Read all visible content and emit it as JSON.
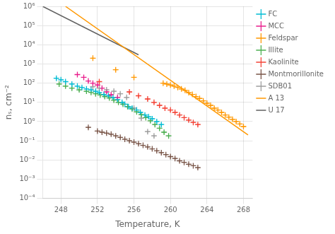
{
  "chart_data": {
    "type": "scatter",
    "xlabel": "Temperature, K",
    "ylabel": "nₛ, cm⁻²",
    "log": "y",
    "xlim": [
      246,
      269
    ],
    "ylim": [
      0.0001,
      1000000
    ],
    "xticks": [
      248,
      252,
      256,
      260,
      264,
      268
    ],
    "yticks": [
      {
        "value": 0.0001,
        "label": "10⁻⁴"
      },
      {
        "value": 0.001,
        "label": "10⁻³"
      },
      {
        "value": 0.01,
        "label": "10⁻²"
      },
      {
        "value": 0.1,
        "label": "10⁻¹"
      },
      {
        "value": 1,
        "label": "10⁰"
      },
      {
        "value": 10,
        "label": "10¹"
      },
      {
        "value": 100,
        "label": "10²"
      },
      {
        "value": 1000,
        "label": "10³"
      },
      {
        "value": 10000,
        "label": "10⁴"
      },
      {
        "value": 100000,
        "label": "10⁵"
      },
      {
        "value": 1000000,
        "label": "10⁶"
      }
    ],
    "grid": true,
    "legend": "upper right",
    "series": [
      {
        "name": "FC",
        "color": "#00bcd4",
        "marker": "plus",
        "x": [
          247.5,
          248.0,
          248.5,
          249.2,
          249.8,
          250.3,
          250.8,
          251.3,
          251.8,
          252.2,
          252.7,
          253.2,
          253.7,
          254.2,
          254.7,
          255.0,
          255.4,
          255.8,
          256.3,
          256.7,
          257.2,
          257.6,
          258.0,
          258.5,
          259.0
        ],
        "values": [
          180,
          150,
          120,
          90,
          70,
          60,
          50,
          45,
          38,
          32,
          26,
          22,
          18,
          14,
          10,
          8,
          6,
          5,
          4,
          3,
          2.2,
          1.8,
          1.4,
          1.0,
          0.7
        ],
        "xerr": 0.25,
        "yerr": [
          [
            36,
            30,
            24,
            18,
            14,
            12,
            10,
            9,
            7.6,
            6.4,
            5.2,
            4.4,
            3.6,
            2.8,
            2,
            1.6,
            1.2,
            1,
            0.8,
            0.6,
            0.44,
            0.36,
            0.28,
            0.2,
            0.14
          ],
          [
            22.5,
            18.75,
            15,
            11.25,
            8.75,
            7.5,
            6.25,
            5.625,
            4.75,
            4,
            3.25,
            2.75,
            2.25,
            1.75,
            1.25,
            1,
            0.75,
            0.625,
            0.5,
            0.375,
            0.275,
            0.225,
            0.175,
            0.125,
            0.0875
          ]
        ]
      },
      {
        "name": "MCC",
        "color": "#e91e8c",
        "marker": "plus",
        "x": [
          249.8,
          250.5,
          251.0,
          251.5,
          252.0,
          252.5,
          253.0,
          253.5,
          254.2
        ],
        "values": [
          280,
          200,
          130,
          100,
          80,
          55,
          35,
          25,
          18
        ],
        "xerr": 0.25,
        "yerr": [
          [
            56,
            40,
            26,
            20,
            16,
            11,
            7,
            5,
            3.6
          ],
          [
            35,
            25,
            16.25,
            12.5,
            10,
            6.875,
            4.375,
            3.125,
            2.25
          ]
        ]
      },
      {
        "name": "Feldspar",
        "color": "#ff9800",
        "marker": "plus",
        "x": [
          251.5,
          254.0,
          256.0,
          259.2,
          259.6,
          260.0,
          260.4,
          260.8,
          261.2,
          261.6,
          262.0,
          262.4,
          262.8,
          263.2,
          263.6,
          264.0,
          264.4,
          264.8,
          265.2,
          265.6,
          266.0,
          266.4,
          266.8,
          267.2,
          267.6,
          268.0
        ],
        "values": [
          2000,
          500,
          200,
          100,
          90,
          80,
          70,
          60,
          50,
          42,
          32,
          26,
          20,
          16,
          12,
          9,
          7,
          5,
          4,
          3,
          2.2,
          1.7,
          1.3,
          1.0,
          0.75,
          0.55
        ],
        "xerr": 0.25,
        "yerr": [
          [
            333.3333333333333,
            83.33333333333331,
            33.33333333333333,
            16.666666666666664,
            14.999999999999996,
            13.33333333333333,
            11.666666666666664,
            9.999999999999998,
            8.333333333333332,
            6.999999999999998,
            5.333333333333332,
            4.333333333333332,
            3.3333333333333326,
            2.666666666666666,
            1.9999999999999996,
            1.4999999999999996,
            1.1666666666666665,
            0.8333333333333331,
            0.6666666666666665,
            0.4999999999999999,
            0.3666666666666666,
            0.2833333333333333,
            0.21666666666666662,
            0.16666666666666663,
            0.12499999999999997,
            0.09166666666666665
          ],
          [
            200,
            50,
            20,
            10,
            9,
            8,
            7,
            6,
            5,
            4.2,
            3.2,
            2.6,
            2,
            1.6,
            1.2,
            0.9,
            0.7,
            0.5,
            0.4,
            0.3,
            0.22,
            0.17,
            0.13,
            0.1,
            0.075,
            0.055
          ]
        ]
      },
      {
        "name": "Illite",
        "color": "#4caf50",
        "marker": "plus",
        "x": [
          247.8,
          248.5,
          249.2,
          250.0,
          250.8,
          251.3,
          251.8,
          252.3,
          252.8,
          253.3,
          253.8,
          254.3,
          254.8,
          255.3,
          255.8,
          256.3,
          256.8,
          257.3,
          257.8,
          258.3,
          258.8,
          259.3,
          259.8
        ],
        "values": [
          90,
          70,
          55,
          45,
          38,
          33,
          28,
          24,
          20,
          17,
          13,
          10,
          8,
          6,
          4.5,
          3.2,
          2.3,
          1.6,
          1.1,
          0.7,
          0.45,
          0.28,
          0.18
        ],
        "xerr": 0.25,
        "yerr": [
          [
            18,
            14,
            11,
            9,
            7.6,
            6.6,
            5.6,
            4.8,
            4,
            3.4,
            2.6,
            2,
            1.6,
            1.2,
            0.9,
            0.64,
            0.46,
            0.32,
            0.22,
            0.14,
            0.09,
            0.056,
            0.036
          ],
          [
            11.25,
            8.75,
            6.875,
            5.625,
            4.75,
            4.125,
            3.5,
            3,
            2.5,
            2.125,
            1.625,
            1.25,
            1,
            0.75,
            0.5625,
            0.4,
            0.2875,
            0.2,
            0.1375,
            0.0875,
            0.05625,
            0.035,
            0.0225
          ]
        ]
      },
      {
        "name": "Kaolinite",
        "color": "#f44336",
        "marker": "plus",
        "x": [
          252.2,
          255.5,
          256.5,
          257.5,
          258.2,
          258.8,
          259.4,
          260.0,
          260.5,
          261.0,
          261.5,
          262.0,
          262.5,
          263.0
        ],
        "values": [
          120,
          35,
          22,
          15,
          10,
          7,
          5,
          4,
          3,
          2.2,
          1.6,
          1.2,
          0.9,
          0.7
        ],
        "xerr": 0.25,
        "yerr": [
          [
            24,
            7,
            4.4,
            3,
            2,
            1.4,
            1,
            0.8,
            0.6,
            0.44,
            0.32,
            0.24,
            0.18,
            0.14
          ],
          [
            15,
            4.375,
            2.75,
            1.875,
            1.25,
            0.875,
            0.625,
            0.5,
            0.375,
            0.275,
            0.2,
            0.15,
            0.1125,
            0.0875
          ]
        ]
      },
      {
        "name": "Montmorillonite",
        "color": "#795548",
        "marker": "plus",
        "x": [
          251.0,
          252.0,
          252.5,
          253.0,
          253.5,
          254.0,
          254.5,
          255.0,
          255.5,
          256.0,
          256.5,
          257.0,
          257.5,
          258.0,
          258.5,
          259.0,
          259.5,
          260.0,
          260.5,
          261.0,
          261.5,
          262.0,
          262.5,
          263.0
        ],
        "values": [
          0.5,
          0.32,
          0.28,
          0.25,
          0.22,
          0.18,
          0.15,
          0.12,
          0.1,
          0.085,
          0.07,
          0.058,
          0.048,
          0.038,
          0.03,
          0.024,
          0.019,
          0.015,
          0.012,
          0.009,
          0.0075,
          0.006,
          0.005,
          0.004
        ],
        "xerr": 0.25,
        "yerr": [
          [
            0.08333333333333331,
            0.05333333333333332,
            0.04666666666666666,
            0.041666666666666664,
            0.03666666666666666,
            0.029999999999999995,
            0.024999999999999994,
            0.019999999999999997,
            0.016666666666666663,
            0.014166666666666664,
            0.011666666666666664,
            0.009666666666666665,
            0.007999999999999998,
            0.006333333333333332,
            0.004999999999999999,
            0.003999999999999999,
            0.003166666666666666,
            0.0024999999999999996,
            0.0019999999999999996,
            0.0014999999999999996,
            0.0012499999999999998,
            0.0009999999999999998,
            0.0008333333333333331,
            0.0006666666666666665
          ],
          [
            0.05,
            0.032,
            0.028,
            0.025,
            0.022,
            0.018,
            0.015,
            0.012,
            0.01,
            0.0085,
            0.007,
            0.0058,
            0.0048,
            0.0038,
            0.003,
            0.0024,
            0.0019,
            0.0015,
            0.0012,
            0.0009,
            0.00075,
            0.0006,
            0.0005,
            0.0004
          ]
        ]
      },
      {
        "name": "SDB01",
        "color": "#9e9e9e",
        "marker": "plus",
        "x": [
          251.5,
          252.2,
          253.0,
          253.8,
          254.5,
          255.2,
          256.0,
          256.8,
          257.5,
          258.2
        ],
        "values": [
          65,
          55,
          45,
          38,
          28,
          18,
          5,
          1.5,
          0.3,
          0.18
        ],
        "xerr": 0.25,
        "yerr": [
          [
            13,
            11,
            9,
            7.6,
            5.6,
            3.6,
            1,
            0.3,
            0.06,
            0.036
          ],
          [
            8.125,
            6.875,
            5.625,
            4.75,
            3.5,
            2.25,
            0.625,
            0.1875,
            0.0375,
            0.0225
          ]
        ]
      },
      {
        "name": "A 13",
        "type": "line",
        "color": "#ff9800",
        "line_style": "solid",
        "x": [
          248.5,
          268.5
        ],
        "values": [
          1000000,
          0.2
        ]
      },
      {
        "name": "U 17",
        "type": "line",
        "color": "#616161",
        "line_style": "solid",
        "x": [
          246.0,
          256.5
        ],
        "values": [
          1000000,
          3000
        ]
      }
    ]
  }
}
